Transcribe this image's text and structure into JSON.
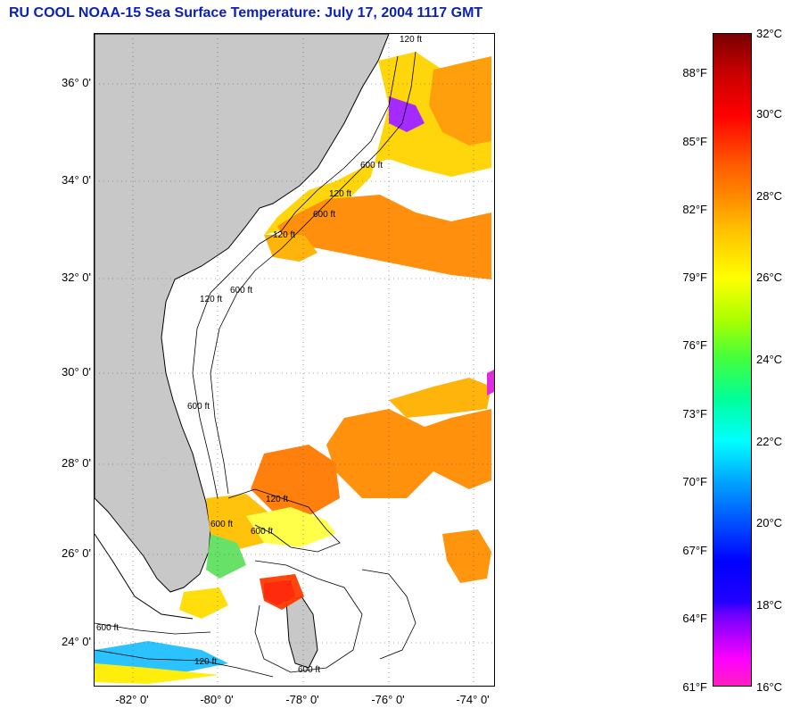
{
  "title": "RU COOL  NOAA-15  Sea Surface Temperature:  July 17, 2004 1117 GMT",
  "map": {
    "lat_labels": [
      "36° 0'",
      "34° 0'",
      "32° 0'",
      "30° 0'",
      "28° 0'",
      "26° 0'",
      "24° 0'"
    ],
    "lon_labels": [
      "-82° 0'",
      "-80° 0'",
      "-78° 0'",
      "-76° 0'",
      "-74° 0'"
    ],
    "contour_labels": [
      "120 ft",
      "600 ft",
      "120 ft",
      "600 ft",
      "120 ft",
      "600 ft",
      "120 ft",
      "600 ft",
      "120 ft",
      "600 ft",
      "600 ft",
      "600 ft",
      "120 ft",
      "600 ft"
    ],
    "land_color": "#c8c8c8",
    "cloud_color": "#ffffff"
  },
  "colorbar": {
    "celsius_labels": [
      "32°C",
      "30°C",
      "28°C",
      "26°C",
      "24°C",
      "22°C",
      "20°C",
      "18°C",
      "16°C"
    ],
    "fahrenheit_labels": [
      "88°F",
      "85°F",
      "82°F",
      "79°F",
      "76°F",
      "73°F",
      "70°F",
      "67°F",
      "64°F",
      "61°F"
    ]
  }
}
